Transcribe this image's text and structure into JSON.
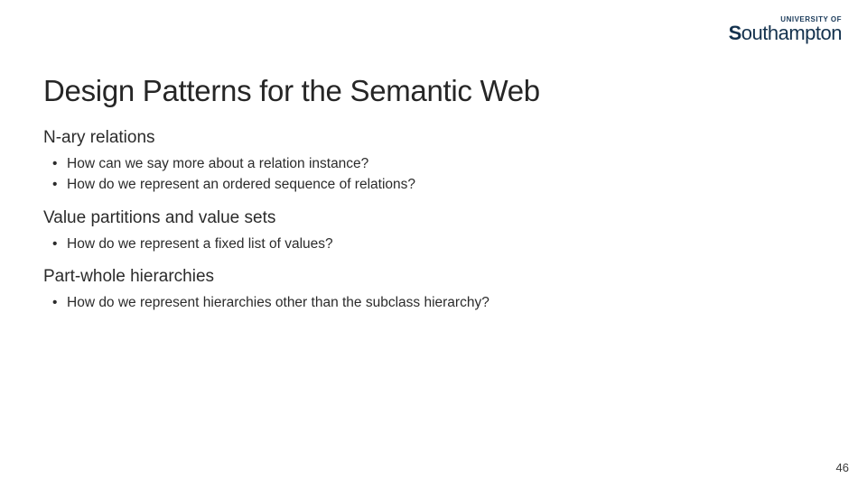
{
  "logo": {
    "tagline": "UNIVERSITY OF",
    "name_prefix": "S",
    "name_rest": "outhampton"
  },
  "title": "Design Patterns for the Semantic Web",
  "sections": [
    {
      "heading": "N-ary relations",
      "bullets": [
        "How can we say more about a relation instance?",
        "How do we represent an ordered sequence of relations?"
      ]
    },
    {
      "heading": "Value partitions and value sets",
      "bullets": [
        "How do we represent a fixed list of values?"
      ]
    },
    {
      "heading": "Part-whole hierarchies",
      "bullets": [
        "How do we represent hierarchies other than the subclass hierarchy?"
      ]
    }
  ],
  "page_number": "46",
  "colors": {
    "background": "#ffffff",
    "text": "#2b2b2b",
    "title": "#262626",
    "logo": "#14324e"
  },
  "typography": {
    "title_fontsize": 33,
    "section_heading_fontsize": 19,
    "bullet_fontsize": 15.5,
    "page_number_fontsize": 13
  }
}
